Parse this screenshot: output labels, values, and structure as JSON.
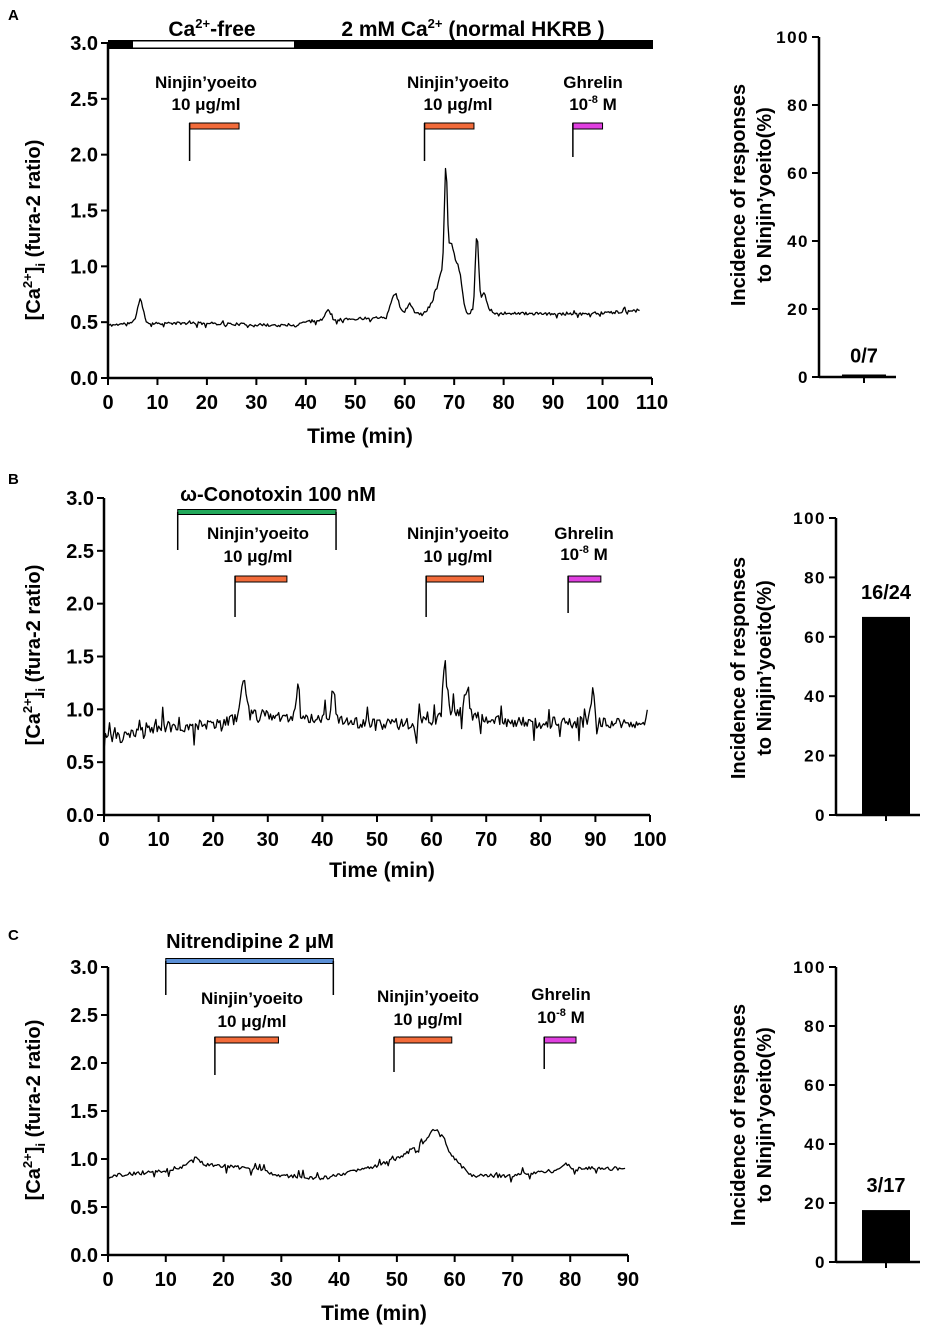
{
  "figure": {
    "panels": [
      {
        "letter": "A",
        "trace": {
          "ylabel_main": "[Ca",
          "ylabel_sup": "2+",
          "ylabel_close": "]",
          "ylabel_sub": "i",
          "ylabel_rest": " (fura-2 ratio)",
          "xlabel": "Time (min)",
          "top_bar": {
            "free_label_main": "Ca",
            "free_label_sup": "2+",
            "free_label_rest": "-free",
            "normal_label_main": "2 mM Ca",
            "normal_label_sup": "2+",
            "normal_label_rest": " (normal HKRB )"
          },
          "treatments": [
            {
              "line1": "Ninjin’yoeito",
              "line2": "10 μg/ml"
            },
            {
              "line1": "Ninjin’yoeito",
              "line2": "10 μg/ml"
            },
            {
              "line1": "Ghrelin",
              "line2_base": "10",
              "line2_sup": "-8",
              "line2_rest": " M"
            }
          ]
        },
        "incidence": {
          "ylabel_line1": "Incidence of responses",
          "ylabel_line2": "to Ninjin’yoeito(%)",
          "bar_label": "0/7"
        }
      },
      {
        "letter": "B",
        "trace": {
          "ylabel_main": "[Ca",
          "ylabel_sup": "2+",
          "ylabel_close": "]",
          "ylabel_sub": "i",
          "ylabel_rest": " (fura-2 ratio)",
          "xlabel": "Time (min)",
          "blocker_label": "ω-Conotoxin 100 nM",
          "treatments": [
            {
              "line1": "Ninjin’yoeito",
              "line2": "10 μg/ml"
            },
            {
              "line1": "Ninjin’yoeito",
              "line2": "10 μg/ml"
            },
            {
              "line1": "Ghrelin",
              "line2_base": "10",
              "line2_sup": "-8",
              "line2_rest": " M"
            }
          ]
        },
        "incidence": {
          "ylabel_line1": "Incidence of responses",
          "ylabel_line2": "to Ninjin’yoeito(%)",
          "bar_label": "16/24"
        }
      },
      {
        "letter": "C",
        "trace": {
          "ylabel_main": "[Ca",
          "ylabel_sup": "2+",
          "ylabel_close": "]",
          "ylabel_sub": "i",
          "ylabel_rest": " (fura-2 ratio)",
          "xlabel": "Time (min)",
          "blocker_label": "Nitrendipine 2 μM",
          "treatments": [
            {
              "line1": "Ninjin’yoeito",
              "line2": "10 μg/ml"
            },
            {
              "line1": "Ninjin’yoeito",
              "line2": "10 μg/ml"
            },
            {
              "line1": "Ghrelin",
              "line2_base": "10",
              "line2_sup": "-8",
              "line2_rest": " M"
            }
          ]
        },
        "incidence": {
          "ylabel_line1": "Incidence of responses",
          "ylabel_line2": "to Ninjin’yoeito(%)",
          "bar_label": "3/17"
        }
      }
    ]
  },
  "colors": {
    "ninjin": "#f26b3a",
    "ghrelin": "#e040e0",
    "conotoxin": "#22a85a",
    "nitrendipine": "#5b8fd6",
    "trace": "#000000",
    "bar": "#000000"
  },
  "chart_data": [
    {
      "id": "A-trace",
      "type": "line",
      "title": "",
      "xlabel": "Time (min)",
      "ylabel": "[Ca2+]i (fura-2 ratio)",
      "xlim": [
        0,
        110
      ],
      "ylim": [
        0,
        3.0
      ],
      "xticks": [
        0,
        10,
        20,
        30,
        40,
        50,
        60,
        70,
        80,
        90,
        100,
        110
      ],
      "yticks": [
        0.0,
        0.5,
        1.0,
        1.5,
        2.0,
        2.5,
        3.0
      ],
      "top_bar": {
        "ca_free_min": [
          5,
          38
        ],
        "normal_min": [
          38,
          110
        ]
      },
      "treatment_markers_min": [
        {
          "name": "Ninjin'yoeito 10 ug/ml",
          "start": 16.5,
          "end": 26.5
        },
        {
          "name": "Ninjin'yoeito 10 ug/ml",
          "start": 64,
          "end": 74
        },
        {
          "name": "Ghrelin 1e-8 M",
          "start": 94,
          "end": 100
        }
      ],
      "seed": 11,
      "noise": 0.012,
      "baseline": [
        [
          0,
          0.47
        ],
        [
          4,
          0.49
        ],
        [
          20,
          0.49
        ],
        [
          35,
          0.47
        ],
        [
          38,
          0.47
        ],
        [
          40,
          0.51
        ],
        [
          50,
          0.53
        ],
        [
          57,
          0.55
        ],
        [
          65,
          0.58
        ],
        [
          75,
          0.58
        ],
        [
          80,
          0.58
        ],
        [
          95,
          0.57
        ],
        [
          107,
          0.6
        ]
      ],
      "spikes": [
        [
          6.5,
          0.2,
          0.6
        ],
        [
          44.5,
          0.1,
          0.5
        ],
        [
          58,
          0.2,
          0.8
        ],
        [
          61,
          0.1,
          0.6
        ],
        [
          67.5,
          0.35,
          1.3
        ],
        [
          68.3,
          0.92,
          0.3
        ],
        [
          69.5,
          0.5,
          0.7
        ],
        [
          71,
          0.35,
          0.6
        ],
        [
          74.6,
          0.68,
          0.35
        ],
        [
          76,
          0.18,
          0.6
        ]
      ],
      "x_end": 107.5
    },
    {
      "id": "A-incidence",
      "type": "bar",
      "categories": [
        ""
      ],
      "values": [
        0
      ],
      "data_labels": [
        "0/7"
      ],
      "ylabel": "Incidence of responses to Ninjin'yoeito(%)",
      "ylim": [
        0,
        100
      ],
      "yticks": [
        0,
        20,
        40,
        60,
        80,
        100
      ]
    },
    {
      "id": "B-trace",
      "type": "line",
      "title": "",
      "xlabel": "Time (min)",
      "ylabel": "[Ca2+]i (fura-2 ratio)",
      "xlim": [
        0,
        100
      ],
      "ylim": [
        0,
        3.0
      ],
      "xticks": [
        0,
        10,
        20,
        30,
        40,
        50,
        60,
        70,
        80,
        90,
        100
      ],
      "yticks": [
        0.0,
        0.5,
        1.0,
        1.5,
        2.0,
        2.5,
        3.0
      ],
      "blocker_min": {
        "name": "omega-Conotoxin 100 nM",
        "start": 13.5,
        "end": 42.5
      },
      "treatment_markers_min": [
        {
          "name": "Ninjin'yoeito 10 ug/ml",
          "start": 24,
          "end": 33.5
        },
        {
          "name": "Ninjin'yoeito 10 ug/ml",
          "start": 59,
          "end": 69.5
        },
        {
          "name": "Ghrelin 1e-8 M",
          "start": 85,
          "end": 91
        }
      ],
      "seed": 23,
      "noise": 0.055,
      "baseline": [
        [
          0,
          0.76
        ],
        [
          3,
          0.72
        ],
        [
          8,
          0.82
        ],
        [
          20,
          0.86
        ],
        [
          28,
          0.95
        ],
        [
          40,
          0.92
        ],
        [
          50,
          0.85
        ],
        [
          60,
          0.88
        ],
        [
          64,
          1.0
        ],
        [
          70,
          0.9
        ],
        [
          80,
          0.87
        ],
        [
          90,
          0.88
        ],
        [
          100,
          0.87
        ]
      ],
      "spikes": [
        [
          25.5,
          0.35,
          0.5
        ],
        [
          35.5,
          0.3,
          0.3
        ],
        [
          42,
          0.3,
          0.3
        ],
        [
          62.5,
          0.52,
          0.35
        ],
        [
          66.5,
          0.25,
          0.4
        ],
        [
          89.5,
          0.28,
          0.3
        ]
      ],
      "x_end": 99.5
    },
    {
      "id": "B-incidence",
      "type": "bar",
      "categories": [
        ""
      ],
      "values": [
        66.7
      ],
      "data_labels": [
        "16/24"
      ],
      "ylabel": "Incidence of responses to Ninjin'yoeito(%)",
      "ylim": [
        0,
        100
      ],
      "yticks": [
        0,
        20,
        40,
        60,
        80,
        100
      ]
    },
    {
      "id": "C-trace",
      "type": "line",
      "title": "",
      "xlabel": "Time (min)",
      "ylabel": "[Ca2+]i (fura-2 ratio)",
      "xlim": [
        0,
        90
      ],
      "ylim": [
        0,
        3.0
      ],
      "xticks": [
        0,
        10,
        20,
        30,
        40,
        50,
        60,
        70,
        80,
        90
      ],
      "yticks": [
        0.0,
        0.5,
        1.0,
        1.5,
        2.0,
        2.5,
        3.0
      ],
      "blocker_min": {
        "name": "Nitrendipine 2 uM",
        "start": 10,
        "end": 39
      },
      "treatment_markers_min": [
        {
          "name": "Ninjin'yoeito 10 ug/ml",
          "start": 18.5,
          "end": 29.5
        },
        {
          "name": "Ninjin'yoeito 10 ug/ml",
          "start": 49.5,
          "end": 59.5
        },
        {
          "name": "Ghrelin 1e-8 M",
          "start": 75.5,
          "end": 81
        }
      ],
      "seed": 37,
      "noise": 0.02,
      "baseline": [
        [
          0,
          0.82
        ],
        [
          10,
          0.88
        ],
        [
          15,
          0.95
        ],
        [
          25,
          0.9
        ],
        [
          30,
          0.83
        ],
        [
          37,
          0.8
        ],
        [
          45,
          0.9
        ],
        [
          50,
          1.0
        ],
        [
          54,
          1.15
        ],
        [
          57,
          1.25
        ],
        [
          60,
          1.0
        ],
        [
          63,
          0.82
        ],
        [
          70,
          0.83
        ],
        [
          75,
          0.86
        ],
        [
          80,
          0.9
        ],
        [
          90,
          0.9
        ]
      ],
      "spikes": [
        [
          15,
          0.08,
          0.8
        ],
        [
          56.2,
          0.08,
          0.5
        ],
        [
          58,
          0.06,
          0.5
        ],
        [
          79,
          0.05,
          0.8
        ]
      ],
      "x_end": 89.5
    },
    {
      "id": "C-incidence",
      "type": "bar",
      "categories": [
        ""
      ],
      "values": [
        17.6
      ],
      "data_labels": [
        "3/17"
      ],
      "ylabel": "Incidence of responses to Ninjin'yoeito(%)",
      "ylim": [
        0,
        100
      ],
      "yticks": [
        0,
        20,
        40,
        60,
        80,
        100
      ]
    }
  ]
}
